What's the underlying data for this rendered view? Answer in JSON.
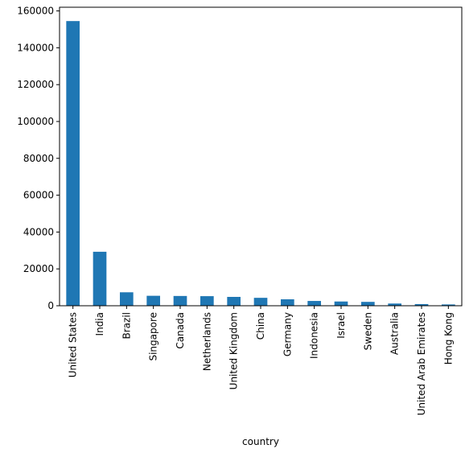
{
  "chart_data": {
    "type": "bar",
    "title": "",
    "xlabel": "country",
    "ylabel": "",
    "categories": [
      "United States",
      "India",
      "Brazil",
      "Singapore",
      "Canada",
      "Netherlands",
      "United Kingdom",
      "China",
      "Germany",
      "Indonesia",
      "Israel",
      "Sweden",
      "Australia",
      "United Arab Emirates",
      "Hong Kong"
    ],
    "values": [
      154500,
      29300,
      7300,
      5400,
      5300,
      5200,
      4800,
      4300,
      3500,
      2600,
      2300,
      2100,
      1200,
      900,
      700
    ],
    "ylim": [
      0,
      162000
    ],
    "yticks": [
      0,
      20000,
      40000,
      60000,
      80000,
      100000,
      120000,
      140000,
      160000
    ],
    "grid": false,
    "legend": "none",
    "bar_color": "#1f77b4"
  }
}
